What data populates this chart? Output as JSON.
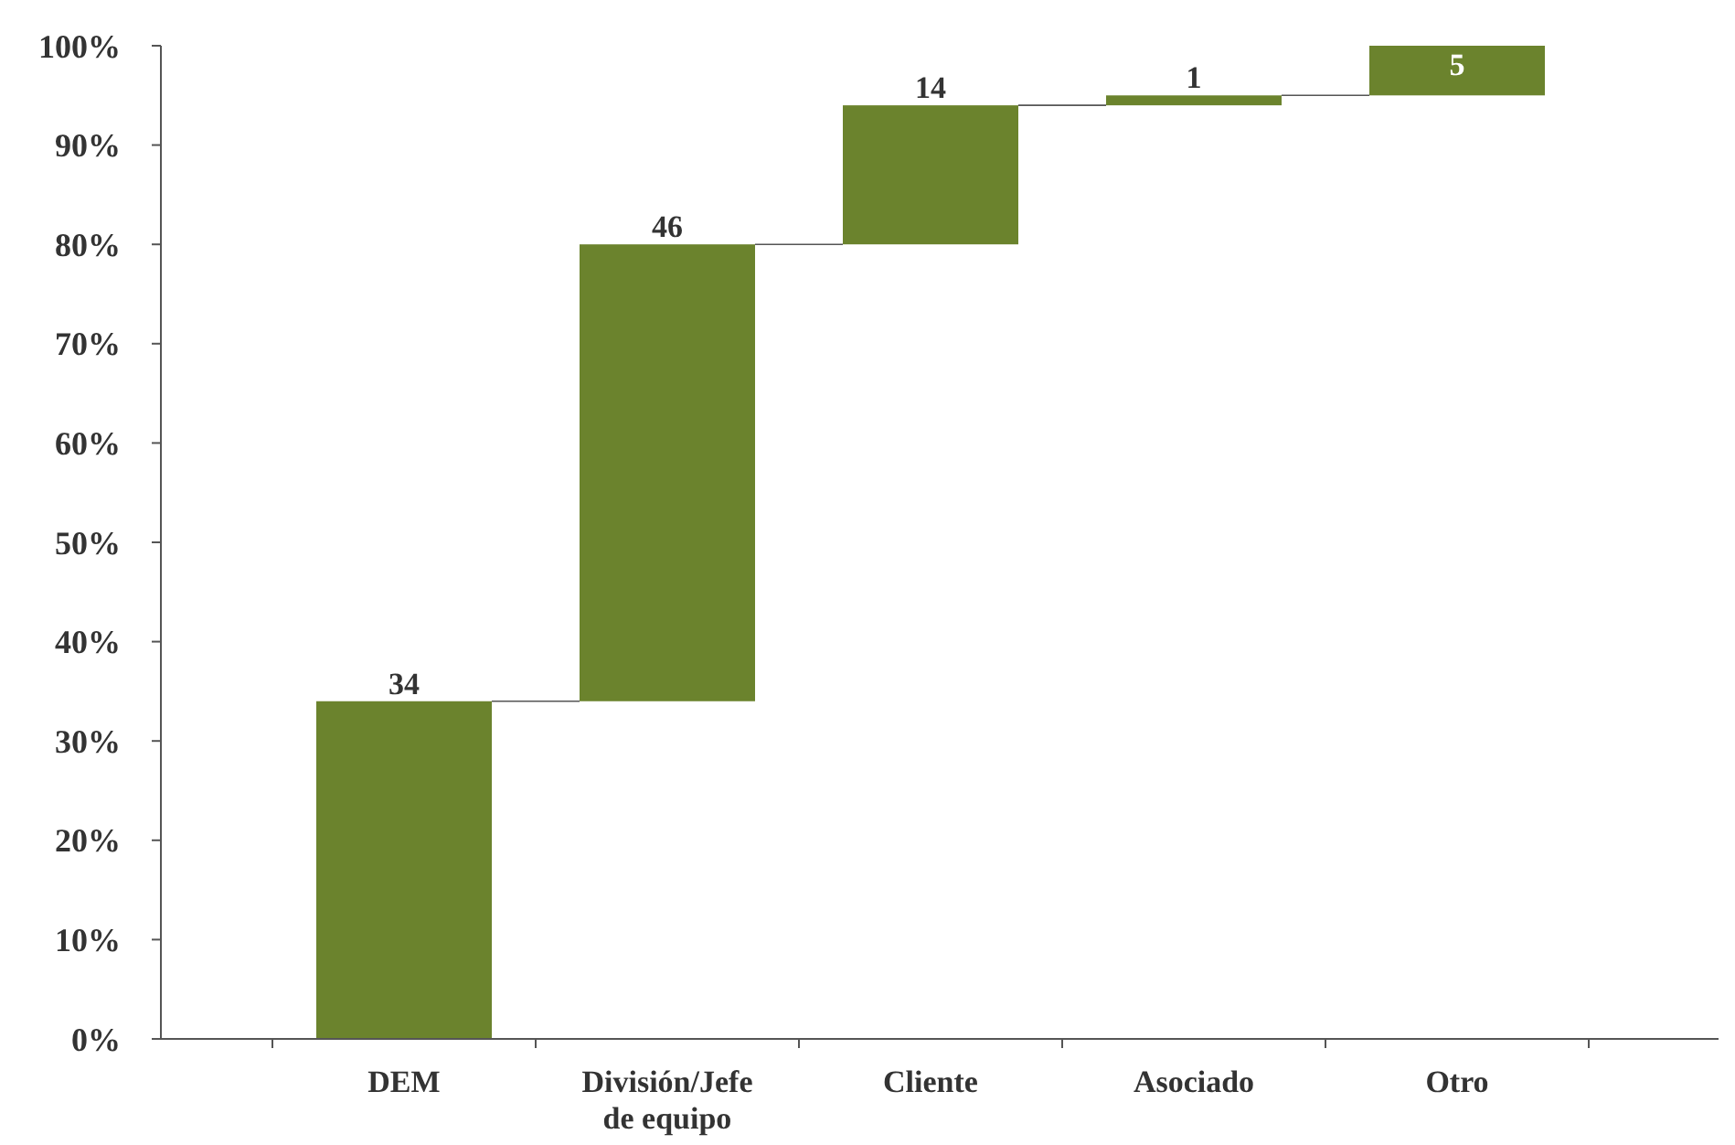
{
  "chart_data": {
    "type": "bar",
    "categories": [
      "DEM",
      "División/Jefe de equipo",
      "Cliente",
      "Asociado",
      "Otro"
    ],
    "values": [
      34,
      46,
      14,
      1,
      5
    ],
    "base": [
      0,
      34,
      80,
      94,
      95
    ],
    "color": "#6b832d",
    "ylim": [
      0,
      100
    ],
    "yticks": [
      {
        "value": 0,
        "label": "0%"
      },
      {
        "value": 10,
        "label": "10%"
      },
      {
        "value": 20,
        "label": "20%"
      },
      {
        "value": 30,
        "label": "30%"
      },
      {
        "value": 40,
        "label": "40%"
      },
      {
        "value": 50,
        "label": "50%"
      },
      {
        "value": 60,
        "label": "60%"
      },
      {
        "value": 70,
        "label": "70%"
      },
      {
        "value": 80,
        "label": "80%"
      },
      {
        "value": 90,
        "label": "90%"
      },
      {
        "value": 100,
        "label": "100%"
      }
    ],
    "data_labels": true
  }
}
